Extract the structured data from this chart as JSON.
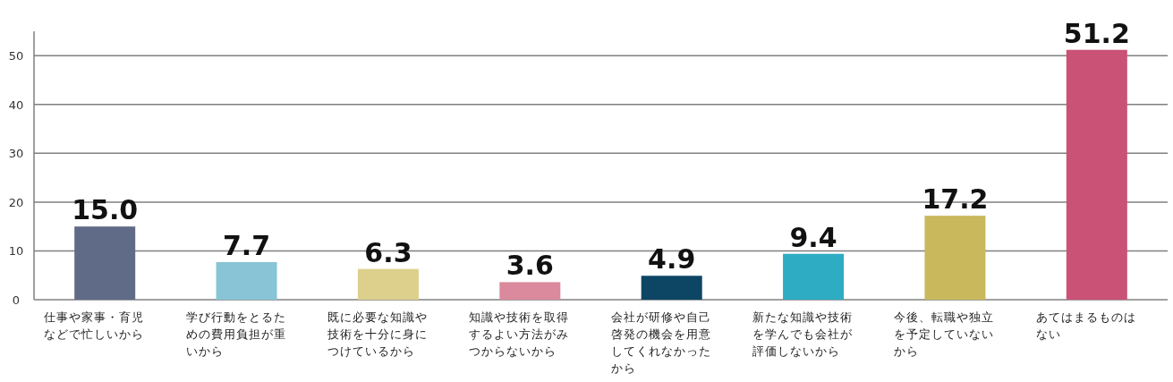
{
  "chart_data": {
    "type": "bar",
    "categories": [
      "仕事や家事・育児などで忙しいから",
      "学び行動をとるための費用負担が重いから",
      "既に必要な知識や技術を十分に身につけているから",
      "知識や技術を取得するよい方法がみつからないから",
      "会社が研修や自己啓発の機会を用意してくれなかったから",
      "新たな知識や技術を学んでも会社が評価しないから",
      "今後、転職や独立を予定していないから",
      "あてはまるものはない"
    ],
    "values": [
      15.0,
      7.7,
      6.3,
      3.6,
      4.9,
      9.4,
      17.2,
      51.2
    ],
    "colors": [
      "#5f6b87",
      "#88c4d6",
      "#ddd08c",
      "#da8a9c",
      "#0d4565",
      "#2eacc4",
      "#c9b85c",
      "#c95276"
    ],
    "value_labels": [
      "15.0",
      "7.7",
      "6.3",
      "3.6",
      "4.9",
      "9.4",
      "17.2",
      "51.2"
    ],
    "ylim": [
      0,
      55
    ],
    "yticks": [
      0,
      10,
      20,
      30,
      40,
      50
    ],
    "grid": "y",
    "data_labels": true
  }
}
